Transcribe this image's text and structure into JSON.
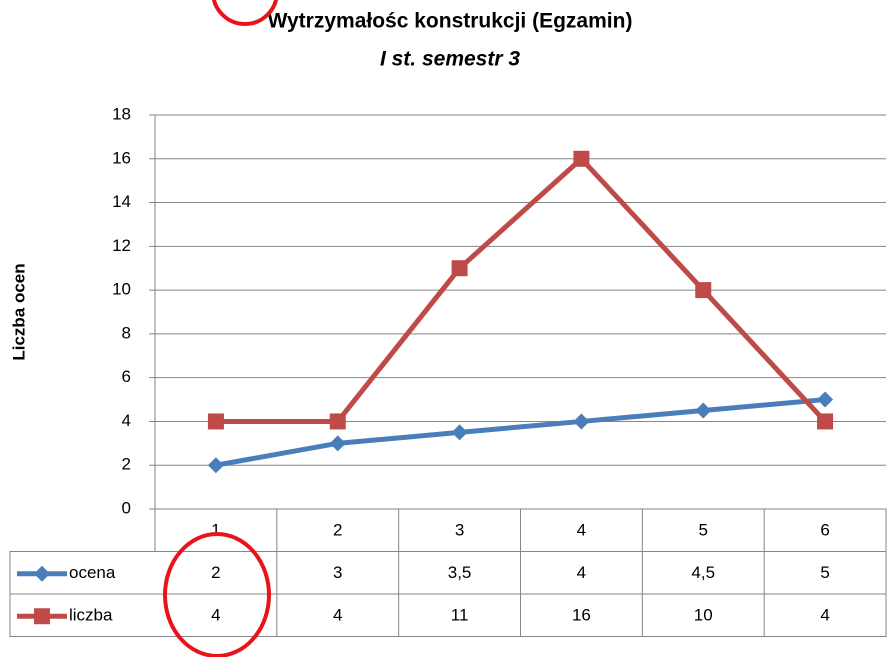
{
  "chart_data": {
    "type": "line",
    "title": "Wytrzymałośc konstrukcji (Egzamin)",
    "subtitle": "I st. semestr 3",
    "y_label": "Liczba ocen",
    "categories": [
      "1",
      "2",
      "3",
      "4",
      "5",
      "6"
    ],
    "series": [
      {
        "name": "ocena",
        "color": "#4a7ebb",
        "marker": "diamond",
        "values": [
          2,
          3,
          3.5,
          4,
          4.5,
          5
        ],
        "value_labels": [
          "2",
          "3",
          "3,5",
          "4",
          "4,5",
          "5"
        ]
      },
      {
        "name": "liczba",
        "color": "#be4b48",
        "marker": "square",
        "values": [
          4,
          4,
          11,
          16,
          10,
          4
        ]
      }
    ],
    "ylim": [
      0,
      18
    ],
    "yticks": [
      0,
      2,
      4,
      6,
      8,
      10,
      12,
      14,
      16,
      18
    ],
    "grid": true,
    "data_table": true
  }
}
